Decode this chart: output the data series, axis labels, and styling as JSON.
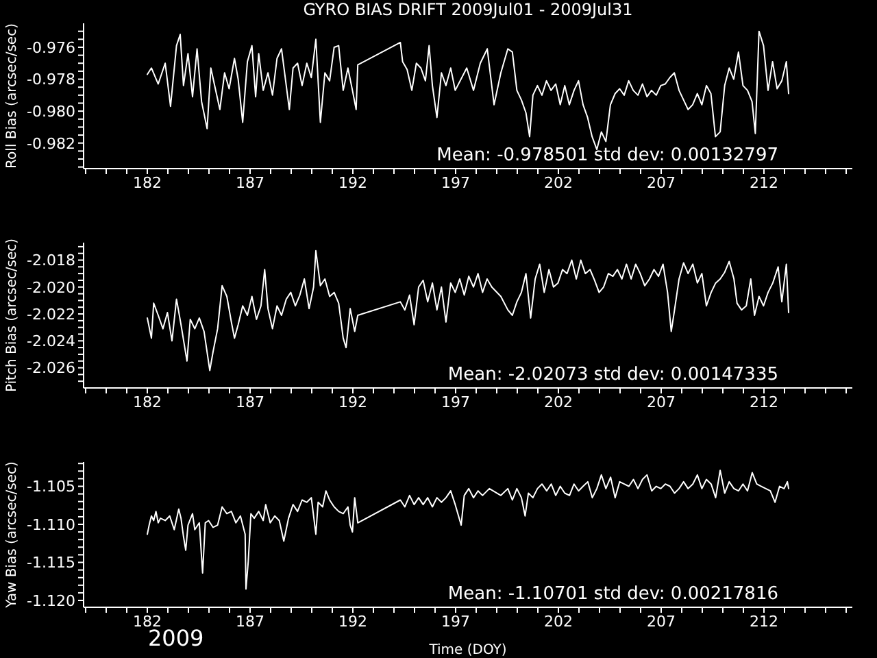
{
  "chart_data": [
    {
      "type": "line",
      "title": "GYRO BIAS DRIFT 2009Jul01 - 2009Jul31",
      "ylabel": "Roll Bias (arcsec/sec)",
      "color": "#ffffff",
      "marker": "none",
      "line_style": "solid",
      "annotations": [
        "Mean: -0.978501 std dev: 0.00132797"
      ],
      "xlim": [
        178.9,
        216.3
      ],
      "xticks": [
        {
          "value": 179,
          "label": null
        },
        {
          "value": 180,
          "label": null
        },
        {
          "value": 181,
          "label": null
        },
        182,
        {
          "value": 183,
          "label": null
        },
        {
          "value": 184,
          "label": null
        },
        {
          "value": 185,
          "label": null
        },
        {
          "value": 186,
          "label": null
        },
        187,
        {
          "value": 188,
          "label": null
        },
        {
          "value": 189,
          "label": null
        },
        {
          "value": 190,
          "label": null
        },
        {
          "value": 191,
          "label": null
        },
        192,
        {
          "value": 193,
          "label": null
        },
        {
          "value": 194,
          "label": null
        },
        {
          "value": 195,
          "label": null
        },
        {
          "value": 196,
          "label": null
        },
        197,
        {
          "value": 198,
          "label": null
        },
        {
          "value": 199,
          "label": null
        },
        {
          "value": 200,
          "label": null
        },
        {
          "value": 201,
          "label": null
        },
        202,
        {
          "value": 203,
          "label": null
        },
        {
          "value": 204,
          "label": null
        },
        {
          "value": 205,
          "label": null
        },
        {
          "value": 206,
          "label": null
        },
        207,
        {
          "value": 208,
          "label": null
        },
        {
          "value": 209,
          "label": null
        },
        {
          "value": 210,
          "label": null
        },
        {
          "value": 211,
          "label": null
        },
        212,
        {
          "value": 213,
          "label": null
        },
        {
          "value": 214,
          "label": null
        },
        {
          "value": 215,
          "label": null
        },
        {
          "value": 216,
          "label": null
        }
      ],
      "ylim": [
        -0.9836,
        -0.9745
      ],
      "yticks": [
        {
          "value": -0.975,
          "label": null
        },
        {
          "value": -0.9755,
          "label": null
        },
        -0.976,
        {
          "value": -0.9765,
          "label": null
        },
        {
          "value": -0.977,
          "label": null
        },
        {
          "value": -0.9775,
          "label": null
        },
        -0.978,
        {
          "value": -0.9785,
          "label": null
        },
        {
          "value": -0.979,
          "label": null
        },
        {
          "value": -0.9795,
          "label": null
        },
        {
          "value": -0.98,
          "label": "-0.980"
        },
        {
          "value": -0.9805,
          "label": null
        },
        {
          "value": -0.981,
          "label": null
        },
        {
          "value": -0.9815,
          "label": null
        },
        -0.982,
        {
          "value": -0.9825,
          "label": null
        },
        {
          "value": -0.983,
          "label": null
        },
        {
          "value": -0.9835,
          "label": null
        }
      ],
      "x": [
        182.0,
        182.2,
        182.53,
        182.87,
        183.13,
        183.42,
        183.6,
        183.76,
        183.98,
        184.2,
        184.42,
        184.64,
        184.91,
        185.09,
        185.31,
        185.53,
        185.76,
        185.98,
        186.24,
        186.42,
        186.64,
        186.87,
        187.09,
        187.27,
        187.42,
        187.64,
        187.87,
        188.09,
        188.31,
        188.53,
        188.69,
        188.91,
        189.09,
        189.31,
        189.53,
        189.76,
        189.98,
        190.2,
        190.42,
        190.64,
        190.87,
        191.09,
        191.31,
        191.53,
        191.76,
        191.98,
        192.16,
        192.24,
        194.31,
        194.42,
        194.64,
        194.87,
        195.09,
        195.31,
        195.53,
        195.71,
        195.87,
        196.09,
        196.31,
        196.53,
        196.76,
        196.98,
        197.54,
        197.87,
        198.2,
        198.54,
        198.87,
        199.2,
        199.54,
        199.76,
        199.98,
        200.2,
        200.42,
        200.6,
        200.76,
        200.98,
        201.2,
        201.42,
        201.64,
        201.87,
        202.09,
        202.31,
        202.53,
        202.76,
        202.98,
        203.2,
        203.42,
        203.64,
        203.87,
        204.09,
        204.31,
        204.53,
        204.76,
        204.98,
        205.2,
        205.42,
        205.64,
        205.87,
        206.09,
        206.31,
        206.53,
        206.76,
        206.98,
        207.2,
        207.42,
        207.64,
        207.87,
        208.09,
        208.31,
        208.53,
        208.76,
        208.98,
        209.2,
        209.42,
        209.64,
        209.87,
        210.09,
        210.31,
        210.53,
        210.76,
        210.98,
        211.2,
        211.42,
        211.58,
        211.76,
        211.98,
        212.2,
        212.42,
        212.64,
        212.87,
        213.09,
        213.2
      ],
      "values": [
        -0.9777,
        -0.9773,
        -0.9783,
        -0.977,
        -0.9797,
        -0.9759,
        -0.9752,
        -0.9784,
        -0.9764,
        -0.9791,
        -0.9761,
        -0.9794,
        -0.9811,
        -0.9773,
        -0.9786,
        -0.9799,
        -0.9776,
        -0.9786,
        -0.9767,
        -0.978,
        -0.9807,
        -0.9769,
        -0.9759,
        -0.9791,
        -0.9764,
        -0.9787,
        -0.9776,
        -0.979,
        -0.9767,
        -0.9761,
        -0.9777,
        -0.9799,
        -0.9773,
        -0.977,
        -0.9784,
        -0.977,
        -0.9779,
        -0.9755,
        -0.9807,
        -0.9776,
        -0.9781,
        -0.976,
        -0.9759,
        -0.9787,
        -0.9773,
        -0.9787,
        -0.9799,
        -0.9771,
        -0.9757,
        -0.9769,
        -0.9774,
        -0.9787,
        -0.977,
        -0.9773,
        -0.9781,
        -0.9759,
        -0.9784,
        -0.9804,
        -0.9776,
        -0.9784,
        -0.9773,
        -0.9787,
        -0.9773,
        -0.9787,
        -0.977,
        -0.9761,
        -0.9796,
        -0.9776,
        -0.9761,
        -0.9763,
        -0.9787,
        -0.9793,
        -0.9801,
        -0.9816,
        -0.979,
        -0.9784,
        -0.979,
        -0.9781,
        -0.9787,
        -0.9783,
        -0.9796,
        -0.9784,
        -0.9796,
        -0.9787,
        -0.9781,
        -0.9796,
        -0.9804,
        -0.9816,
        -0.9824,
        -0.9813,
        -0.9819,
        -0.9796,
        -0.9789,
        -0.9786,
        -0.979,
        -0.9781,
        -0.9787,
        -0.979,
        -0.9783,
        -0.9791,
        -0.9787,
        -0.979,
        -0.9784,
        -0.9783,
        -0.9779,
        -0.9776,
        -0.9787,
        -0.9793,
        -0.9799,
        -0.9796,
        -0.9789,
        -0.9796,
        -0.9784,
        -0.9789,
        -0.9816,
        -0.9813,
        -0.9784,
        -0.9773,
        -0.978,
        -0.9763,
        -0.9784,
        -0.9787,
        -0.9794,
        -0.9814,
        -0.975,
        -0.9759,
        -0.9787,
        -0.9769,
        -0.9786,
        -0.9781,
        -0.9769,
        -0.9789
      ]
    },
    {
      "type": "line",
      "ylabel": "Pitch Bias (arcsec/sec)",
      "color": "#ffffff",
      "marker": "none",
      "line_style": "solid",
      "annotations": [
        "Mean: -2.02073 std dev: 0.00147335"
      ],
      "xlim": [
        178.9,
        216.3
      ],
      "xticks": [
        {
          "value": 179,
          "label": null
        },
        {
          "value": 180,
          "label": null
        },
        {
          "value": 181,
          "label": null
        },
        182,
        {
          "value": 183,
          "label": null
        },
        {
          "value": 184,
          "label": null
        },
        {
          "value": 185,
          "label": null
        },
        {
          "value": 186,
          "label": null
        },
        187,
        {
          "value": 188,
          "label": null
        },
        {
          "value": 189,
          "label": null
        },
        {
          "value": 190,
          "label": null
        },
        {
          "value": 191,
          "label": null
        },
        192,
        {
          "value": 193,
          "label": null
        },
        {
          "value": 194,
          "label": null
        },
        {
          "value": 195,
          "label": null
        },
        {
          "value": 196,
          "label": null
        },
        197,
        {
          "value": 198,
          "label": null
        },
        {
          "value": 199,
          "label": null
        },
        {
          "value": 200,
          "label": null
        },
        {
          "value": 201,
          "label": null
        },
        202,
        {
          "value": 203,
          "label": null
        },
        {
          "value": 204,
          "label": null
        },
        {
          "value": 205,
          "label": null
        },
        {
          "value": 206,
          "label": null
        },
        207,
        {
          "value": 208,
          "label": null
        },
        {
          "value": 209,
          "label": null
        },
        {
          "value": 210,
          "label": null
        },
        {
          "value": 211,
          "label": null
        },
        212,
        {
          "value": 213,
          "label": null
        },
        {
          "value": 214,
          "label": null
        },
        {
          "value": 215,
          "label": null
        },
        {
          "value": 216,
          "label": null
        }
      ],
      "ylim": [
        -2.0275,
        -2.0167
      ],
      "yticks": [
        {
          "value": -2.017,
          "label": null
        },
        {
          "value": -2.0175,
          "label": null
        },
        -2.018,
        {
          "value": -2.0185,
          "label": null
        },
        {
          "value": -2.019,
          "label": null
        },
        {
          "value": -2.0195,
          "label": null
        },
        {
          "value": -2.02,
          "label": "-2.020"
        },
        {
          "value": -2.0205,
          "label": null
        },
        {
          "value": -2.021,
          "label": null
        },
        {
          "value": -2.0215,
          "label": null
        },
        -2.022,
        {
          "value": -2.0225,
          "label": null
        },
        {
          "value": -2.023,
          "label": null
        },
        {
          "value": -2.0235,
          "label": null
        },
        -2.024,
        {
          "value": -2.0245,
          "label": null
        },
        {
          "value": -2.025,
          "label": null
        },
        {
          "value": -2.0255,
          "label": null
        },
        -2.026,
        {
          "value": -2.0265,
          "label": null
        },
        {
          "value": -2.027,
          "label": null
        }
      ],
      "x": [
        182.0,
        182.2,
        182.31,
        182.53,
        182.76,
        182.98,
        183.2,
        183.42,
        183.64,
        183.93,
        184.09,
        184.31,
        184.53,
        184.76,
        185.04,
        185.2,
        185.42,
        185.64,
        185.87,
        186.09,
        186.24,
        186.42,
        186.64,
        186.87,
        187.09,
        187.31,
        187.53,
        187.71,
        187.87,
        188.09,
        188.31,
        188.53,
        188.76,
        188.98,
        189.2,
        189.42,
        189.64,
        189.87,
        190.09,
        190.2,
        190.42,
        190.64,
        190.87,
        191.09,
        191.31,
        191.53,
        191.67,
        191.87,
        192.09,
        192.24,
        194.31,
        194.53,
        194.76,
        194.98,
        195.2,
        195.42,
        195.64,
        195.87,
        196.09,
        196.31,
        196.53,
        196.76,
        196.98,
        197.2,
        197.42,
        197.64,
        197.87,
        198.09,
        198.31,
        198.53,
        198.76,
        199.2,
        199.54,
        199.76,
        199.98,
        200.2,
        200.42,
        200.65,
        200.87,
        201.09,
        201.31,
        201.54,
        201.76,
        201.98,
        202.2,
        202.42,
        202.65,
        202.87,
        203.09,
        203.31,
        203.54,
        203.76,
        203.98,
        204.2,
        204.43,
        204.65,
        204.87,
        205.09,
        205.31,
        205.54,
        205.76,
        205.98,
        206.2,
        206.43,
        206.65,
        206.87,
        207.09,
        207.31,
        207.49,
        207.65,
        207.87,
        208.09,
        208.31,
        208.54,
        208.76,
        208.98,
        209.2,
        209.43,
        209.65,
        209.87,
        210.09,
        210.31,
        210.54,
        210.69,
        210.91,
        211.14,
        211.36,
        211.54,
        211.76,
        211.98,
        212.2,
        212.43,
        212.69,
        212.87,
        213.09,
        213.2
      ],
      "values": [
        -2.0223,
        -2.0238,
        -2.0212,
        -2.0221,
        -2.0231,
        -2.0219,
        -2.024,
        -2.0209,
        -2.0228,
        -2.0255,
        -2.0224,
        -2.0231,
        -2.0223,
        -2.0233,
        -2.0262,
        -2.0248,
        -2.0231,
        -2.0199,
        -2.0207,
        -2.0226,
        -2.0238,
        -2.0228,
        -2.0214,
        -2.0221,
        -2.0207,
        -2.0224,
        -2.0214,
        -2.0187,
        -2.0216,
        -2.0231,
        -2.0214,
        -2.0221,
        -2.0209,
        -2.0204,
        -2.0214,
        -2.0206,
        -2.0194,
        -2.0216,
        -2.02,
        -2.0173,
        -2.0199,
        -2.0194,
        -2.0207,
        -2.0204,
        -2.0212,
        -2.0238,
        -2.0245,
        -2.0216,
        -2.0233,
        -2.0221,
        -2.0211,
        -2.0217,
        -2.0206,
        -2.0228,
        -2.02,
        -2.0195,
        -2.0211,
        -2.0197,
        -2.0217,
        -2.02,
        -2.0226,
        -2.0197,
        -2.0204,
        -2.0194,
        -2.0206,
        -2.0192,
        -2.02,
        -2.019,
        -2.0204,
        -2.0194,
        -2.02,
        -2.0207,
        -2.0217,
        -2.0221,
        -2.0211,
        -2.0204,
        -2.019,
        -2.0223,
        -2.0194,
        -2.0183,
        -2.0204,
        -2.0187,
        -2.02,
        -2.0197,
        -2.0187,
        -2.019,
        -2.018,
        -2.0194,
        -2.018,
        -2.019,
        -2.0187,
        -2.0195,
        -2.0204,
        -2.02,
        -2.019,
        -2.0192,
        -2.0187,
        -2.0194,
        -2.0183,
        -2.0194,
        -2.0183,
        -2.019,
        -2.0199,
        -2.0194,
        -2.0187,
        -2.0192,
        -2.0183,
        -2.0204,
        -2.0233,
        -2.0217,
        -2.0194,
        -2.0182,
        -2.019,
        -2.0183,
        -2.0197,
        -2.019,
        -2.0214,
        -2.0204,
        -2.0197,
        -2.0194,
        -2.0189,
        -2.0181,
        -2.0194,
        -2.0212,
        -2.0217,
        -2.0214,
        -2.0194,
        -2.0221,
        -2.0207,
        -2.0214,
        -2.0204,
        -2.0197,
        -2.0185,
        -2.0211,
        -2.0183,
        -2.0219
      ]
    },
    {
      "type": "line",
      "ylabel": "Yaw Bias (arcsec/sec)",
      "xlabel": "Time (DOY)",
      "color": "#ffffff",
      "marker": "none",
      "line_style": "solid",
      "annotations": [
        "Mean: -1.10701 std dev: 0.00217816",
        "2009"
      ],
      "xlim": [
        178.9,
        216.3
      ],
      "xticks": [
        {
          "value": 179,
          "label": null
        },
        {
          "value": 180,
          "label": null
        },
        {
          "value": 181,
          "label": null
        },
        182,
        {
          "value": 183,
          "label": null
        },
        {
          "value": 184,
          "label": null
        },
        {
          "value": 185,
          "label": null
        },
        {
          "value": 186,
          "label": null
        },
        187,
        {
          "value": 188,
          "label": null
        },
        {
          "value": 189,
          "label": null
        },
        {
          "value": 190,
          "label": null
        },
        {
          "value": 191,
          "label": null
        },
        192,
        {
          "value": 193,
          "label": null
        },
        {
          "value": 194,
          "label": null
        },
        {
          "value": 195,
          "label": null
        },
        {
          "value": 196,
          "label": null
        },
        197,
        {
          "value": 198,
          "label": null
        },
        {
          "value": 199,
          "label": null
        },
        {
          "value": 200,
          "label": null
        },
        {
          "value": 201,
          "label": null
        },
        202,
        {
          "value": 203,
          "label": null
        },
        {
          "value": 204,
          "label": null
        },
        {
          "value": 205,
          "label": null
        },
        {
          "value": 206,
          "label": null
        },
        207,
        {
          "value": 208,
          "label": null
        },
        {
          "value": 209,
          "label": null
        },
        {
          "value": 210,
          "label": null
        },
        {
          "value": 211,
          "label": null
        },
        212,
        {
          "value": 213,
          "label": null
        },
        {
          "value": 214,
          "label": null
        },
        {
          "value": 215,
          "label": null
        },
        {
          "value": 216,
          "label": null
        }
      ],
      "ylim": [
        -1.1209,
        -1.1018
      ],
      "yticks": [
        {
          "value": -1.102,
          "label": null
        },
        {
          "value": -1.103,
          "label": null
        },
        {
          "value": -1.104,
          "label": null
        },
        -1.105,
        {
          "value": -1.106,
          "label": null
        },
        {
          "value": -1.107,
          "label": null
        },
        {
          "value": -1.108,
          "label": null
        },
        {
          "value": -1.109,
          "label": null
        },
        {
          "value": -1.11,
          "label": "-1.110"
        },
        {
          "value": -1.111,
          "label": null
        },
        {
          "value": -1.112,
          "label": null
        },
        {
          "value": -1.113,
          "label": null
        },
        {
          "value": -1.114,
          "label": null
        },
        -1.115,
        {
          "value": -1.116,
          "label": null
        },
        {
          "value": -1.117,
          "label": null
        },
        {
          "value": -1.118,
          "label": null
        },
        {
          "value": -1.119,
          "label": null
        },
        {
          "value": -1.12,
          "label": "-1.120"
        }
      ],
      "x": [
        182.0,
        182.09,
        182.2,
        182.31,
        182.42,
        182.53,
        182.64,
        182.87,
        183.09,
        183.31,
        183.53,
        183.64,
        183.76,
        183.87,
        183.98,
        184.2,
        184.31,
        184.53,
        184.69,
        184.82,
        184.98,
        185.2,
        185.42,
        185.64,
        185.87,
        186.09,
        186.31,
        186.53,
        186.76,
        186.8,
        186.91,
        187.04,
        187.2,
        187.42,
        187.64,
        187.76,
        187.98,
        188.2,
        188.42,
        188.64,
        188.87,
        189.09,
        189.31,
        189.53,
        189.76,
        189.98,
        190.2,
        190.31,
        190.53,
        190.69,
        190.87,
        191.09,
        191.31,
        191.53,
        191.76,
        191.87,
        191.98,
        192.09,
        192.24,
        194.31,
        194.53,
        194.76,
        194.98,
        195.2,
        195.42,
        195.64,
        195.87,
        196.09,
        196.31,
        196.53,
        196.76,
        196.98,
        197.27,
        197.42,
        197.64,
        197.87,
        198.09,
        198.31,
        198.64,
        199.2,
        199.54,
        199.76,
        199.98,
        200.2,
        200.38,
        200.54,
        200.76,
        200.98,
        201.2,
        201.43,
        201.65,
        201.87,
        202.09,
        202.31,
        202.54,
        202.76,
        202.98,
        203.2,
        203.43,
        203.65,
        203.87,
        204.09,
        204.31,
        204.54,
        204.76,
        204.98,
        205.2,
        205.43,
        205.65,
        205.87,
        206.09,
        206.31,
        206.54,
        206.76,
        206.98,
        207.2,
        207.43,
        207.65,
        207.87,
        208.09,
        208.31,
        208.54,
        208.76,
        208.98,
        209.2,
        209.43,
        209.65,
        209.87,
        210.09,
        210.31,
        210.54,
        210.76,
        210.98,
        211.2,
        211.43,
        211.65,
        211.87,
        212.09,
        212.31,
        212.54,
        212.76,
        212.98,
        213.14,
        213.2
      ],
      "values": [
        -1.1113,
        -1.1101,
        -1.1089,
        -1.1095,
        -1.1083,
        -1.1098,
        -1.1092,
        -1.1095,
        -1.1089,
        -1.1107,
        -1.108,
        -1.1092,
        -1.1116,
        -1.1134,
        -1.1101,
        -1.1086,
        -1.1107,
        -1.1098,
        -1.1164,
        -1.1098,
        -1.1095,
        -1.1104,
        -1.1101,
        -1.1077,
        -1.1086,
        -1.1083,
        -1.1098,
        -1.1089,
        -1.1113,
        -1.1185,
        -1.1149,
        -1.1086,
        -1.1092,
        -1.1083,
        -1.1095,
        -1.1074,
        -1.1098,
        -1.1089,
        -1.1095,
        -1.1122,
        -1.1092,
        -1.1074,
        -1.1083,
        -1.1068,
        -1.1071,
        -1.1065,
        -1.1113,
        -1.1071,
        -1.1077,
        -1.1056,
        -1.1068,
        -1.1077,
        -1.1083,
        -1.1086,
        -1.1077,
        -1.1101,
        -1.111,
        -1.1065,
        -1.1098,
        -1.1068,
        -1.1077,
        -1.1062,
        -1.1074,
        -1.1065,
        -1.1074,
        -1.1065,
        -1.1077,
        -1.1065,
        -1.1071,
        -1.1065,
        -1.1056,
        -1.1074,
        -1.1101,
        -1.1062,
        -1.1053,
        -1.1065,
        -1.1056,
        -1.1062,
        -1.1053,
        -1.1062,
        -1.1053,
        -1.1068,
        -1.1053,
        -1.1065,
        -1.1089,
        -1.1059,
        -1.1065,
        -1.1053,
        -1.1047,
        -1.1056,
        -1.1047,
        -1.1062,
        -1.105,
        -1.1059,
        -1.1062,
        -1.1047,
        -1.1056,
        -1.105,
        -1.1044,
        -1.1065,
        -1.1053,
        -1.1035,
        -1.1053,
        -1.1038,
        -1.1065,
        -1.1044,
        -1.1047,
        -1.105,
        -1.1041,
        -1.1053,
        -1.1041,
        -1.1035,
        -1.1056,
        -1.105,
        -1.1053,
        -1.1047,
        -1.105,
        -1.1059,
        -1.1053,
        -1.1044,
        -1.1053,
        -1.1047,
        -1.1035,
        -1.1053,
        -1.1041,
        -1.1047,
        -1.1065,
        -1.1029,
        -1.1059,
        -1.1044,
        -1.1053,
        -1.1056,
        -1.1047,
        -1.1056,
        -1.1032,
        -1.1047,
        -1.105,
        -1.1053,
        -1.1056,
        -1.1071,
        -1.105,
        -1.1053,
        -1.1044,
        -1.1053
      ]
    }
  ]
}
